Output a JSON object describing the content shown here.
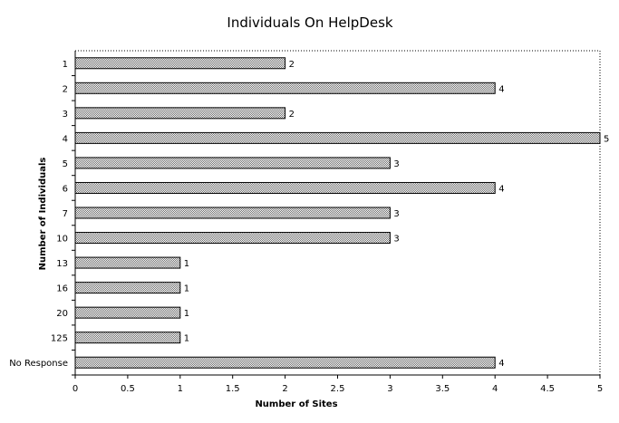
{
  "chart_data": {
    "type": "bar",
    "orientation": "horizontal",
    "title": "Individuals On HelpDesk",
    "xlabel": "Number of Sites",
    "ylabel": "Number of Individuals",
    "categories": [
      "1",
      "2",
      "3",
      "4",
      "5",
      "6",
      "7",
      "10",
      "13",
      "16",
      "20",
      "125",
      "No Response"
    ],
    "values": [
      2,
      4,
      2,
      5,
      3,
      4,
      3,
      3,
      1,
      1,
      1,
      1,
      4
    ],
    "xlim": [
      0,
      5
    ],
    "x_ticks": [
      "0",
      "0.5",
      "1",
      "1.5",
      "2",
      "2.5",
      "3",
      "3.5",
      "4",
      "4.5",
      "5"
    ],
    "grid": false,
    "legend": "none",
    "data_labels": true,
    "colors": {
      "bar_fill": "#bdbdbd",
      "bar_stroke": "#000000",
      "plot_border": "#000000"
    }
  }
}
